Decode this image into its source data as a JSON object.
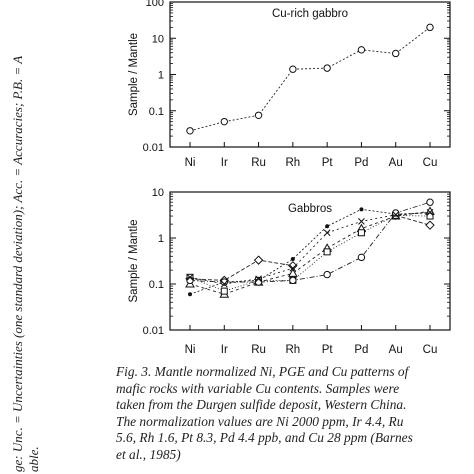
{
  "side_text": "ge: Unc. = Uncertainties (one standard deviation); Acc. = Accuracies; P.B. = A",
  "side_text_2": "able.",
  "caption_lines": [
    "Fig. 3.  Mantle normalized Ni, PGE and Cu patterns of",
    "mafic rocks with variable Cu contents. Samples were",
    "taken from the Durgen sulfide deposit, Western China.",
    "The normalization values are Ni 2000 ppm, Ir 4.4, Ru",
    "5.6, Rh 1.6, Pt 8.3, Pd 4.4 ppb, and Cu 28 ppm (Barnes",
    "et al., 1985)"
  ],
  "chart_data": [
    {
      "type": "line",
      "title": "Cu-rich gabbro",
      "ylabel": "Sample / Mantle",
      "xlabel": "",
      "yscale": "log",
      "ylim": [
        0.01,
        100
      ],
      "yticks": [
        "0.01",
        "0.1",
        "1",
        "10",
        "100"
      ],
      "categories": [
        "Ni",
        "Ir",
        "Ru",
        "Rh",
        "Pt",
        "Pd",
        "Au",
        "Cu"
      ],
      "series": [
        {
          "marker": "circle-open",
          "values": [
            0.028,
            0.05,
            0.075,
            1.4,
            1.5,
            4.8,
            3.8,
            20
          ]
        }
      ]
    },
    {
      "type": "line",
      "title": "Gabbros",
      "ylabel": "Sample / Mantle",
      "xlabel": "",
      "yscale": "log",
      "ylim": [
        0.01,
        10
      ],
      "yticks": [
        "0.01",
        "0.1",
        "1",
        "10"
      ],
      "categories": [
        "Ni",
        "Ir",
        "Ru",
        "Rh",
        "Pt",
        "Pd",
        "Au",
        "Cu"
      ],
      "series": [
        {
          "marker": "dot",
          "values": [
            0.06,
            0.11,
            0.12,
            0.35,
            1.8,
            4.2,
            3.3,
            3.5
          ]
        },
        {
          "marker": "diamond-open",
          "values": [
            0.13,
            0.12,
            0.33,
            0.25,
            null,
            null,
            3.1,
            1.9
          ]
        },
        {
          "marker": "triangle-open",
          "values": [
            0.1,
            0.06,
            0.11,
            0.17,
            0.6,
            1.6,
            3.0,
            3.8
          ]
        },
        {
          "marker": "square-open",
          "values": [
            0.14,
            0.07,
            0.12,
            0.12,
            0.5,
            1.3,
            3.1,
            3.0
          ]
        },
        {
          "marker": "circle-open",
          "values": [
            0.12,
            0.11,
            0.11,
            0.12,
            0.16,
            0.38,
            3.5,
            6.0
          ]
        },
        {
          "marker": "x",
          "values": [
            0.14,
            0.1,
            0.13,
            0.22,
            1.3,
            2.3,
            3.2,
            3.6
          ]
        }
      ]
    }
  ]
}
